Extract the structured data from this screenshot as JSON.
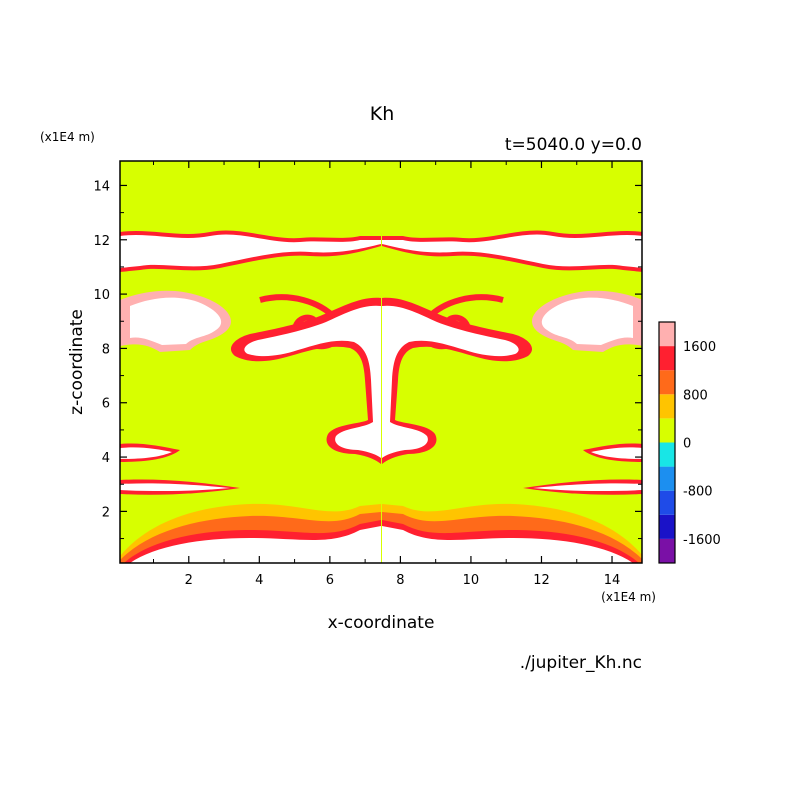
{
  "chart_data": {
    "type": "heatmap",
    "title": "Kh",
    "subtitle": "t=5040.0 y=0.0",
    "xlabel": "x-coordinate",
    "ylabel": "z-coordinate",
    "x_unit": "(x1E4 m)",
    "y_unit": "(x1E4 m)",
    "source": "./jupiter_Kh.nc",
    "xlim": [
      0.05,
      14.85
    ],
    "ylim": [
      0.1,
      14.9
    ],
    "x_ticks": [
      2,
      4,
      6,
      8,
      10,
      12,
      14
    ],
    "y_ticks": [
      2,
      4,
      6,
      8,
      10,
      12,
      14
    ],
    "colorbar": {
      "levels": [
        -2000,
        -1600,
        -1200,
        -800,
        -400,
        0,
        400,
        800,
        1200,
        1600,
        2000
      ],
      "tick_labels": [
        "-1600",
        "-800",
        "0",
        "800",
        "1600"
      ],
      "tick_values": [
        -1600,
        -800,
        0,
        800,
        1600
      ],
      "colors": [
        "#7a10a6",
        "#1a12c8",
        "#1f4be8",
        "#1c8ff0",
        "#18e6e6",
        "#d7ff00",
        "#ffc400",
        "#ff6a1a",
        "#ff2030",
        "#ffb0b0"
      ]
    },
    "field_summary": "Mirror-symmetric field about x≈7.45; mostly 0–400 (yellow-green) with high-value (>2000, white) plumes bordered by 400–2000 contours."
  }
}
